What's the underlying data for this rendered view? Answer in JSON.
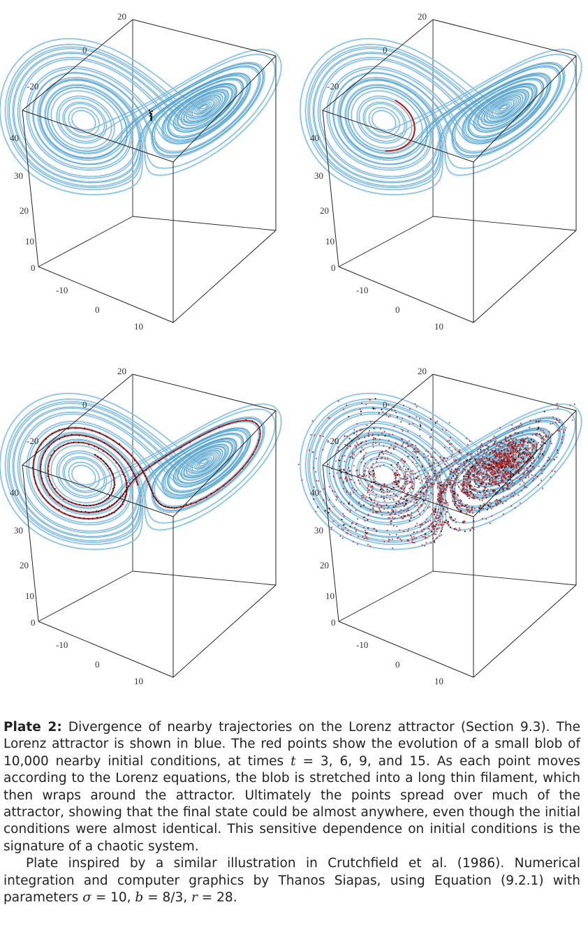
{
  "figure": {
    "panels": [
      {
        "id": "t3",
        "time": 3
      },
      {
        "id": "t6",
        "time": 6
      },
      {
        "id": "t9",
        "time": 9
      },
      {
        "id": "t15",
        "time": 15
      }
    ],
    "ticks": {
      "x_top": [
        "20",
        "0",
        "-20"
      ],
      "z_left": [
        "40",
        "30",
        "20",
        "10",
        "0"
      ],
      "y_bottom": [
        "-10",
        "0",
        "10"
      ]
    },
    "colors": {
      "attractor": "#3a93c6",
      "attractor_light": "#bcd9e8",
      "blob": "#b31b1b",
      "blob_dark": "#1a0d0d",
      "box": "#222222"
    }
  },
  "caption": {
    "plate_label": "Plate 2:",
    "line1": " Divergence of nearby trajectories on the Lorenz attractor (Section 9.3). The Lorenz attractor is shown in blue. The red points show the evolution of a small blob of 10,000 nearby initial conditions, at times ",
    "t_sym": "t",
    "line1b": " = 3, 6, 9, and 15. As each point moves according to the Lorenz equations, the blob is stretched into a long thin filament, which then wraps around the attractor. Ultimately the points spread over much of the attractor, showing that the final state could be almost anywhere, even though the initial conditions were almost identical. This sensitive dependence on initial conditions is the signature of a chaotic system.",
    "line2": "Plate inspired by a similar illustration in Crutchfield et al. (1986). Numerical integration and computer graphics by Thanos Siapas, using Equation (9.2.1) with parameters ",
    "sigma_sym": "σ",
    "sigma_val": " = 10, ",
    "b_sym": "b",
    "b_val": " = 8/3, ",
    "r_sym": "r",
    "r_val": " = 28."
  }
}
